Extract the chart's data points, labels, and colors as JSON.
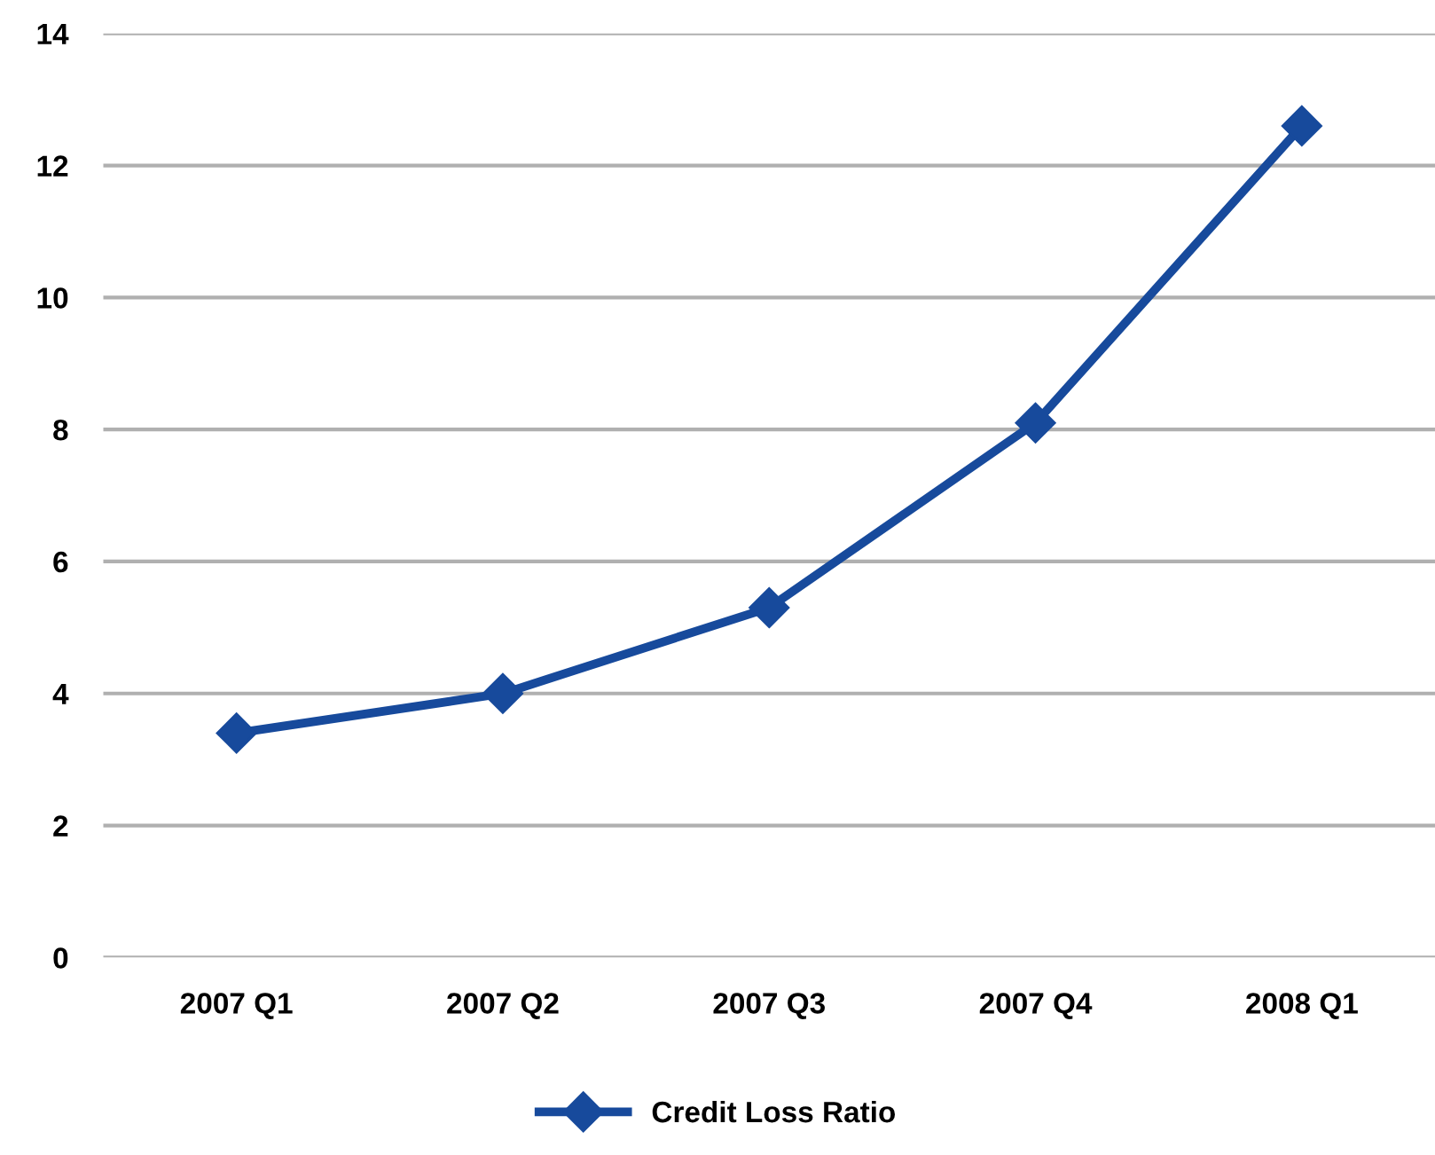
{
  "chart_data": {
    "type": "line",
    "categories": [
      "2007 Q1",
      "2007 Q2",
      "2007 Q3",
      "2007 Q4",
      "2008 Q1"
    ],
    "series": [
      {
        "name": "Credit Loss Ratio",
        "color": "#174a9c",
        "values": [
          3.4,
          4.0,
          5.3,
          8.1,
          12.6
        ]
      }
    ],
    "ylim": [
      0,
      14
    ],
    "yticks": [
      0,
      2,
      4,
      6,
      8,
      10,
      12,
      14
    ],
    "grid": "y",
    "legend": "bottom",
    "marker": "diamond",
    "line_style": "solid"
  }
}
